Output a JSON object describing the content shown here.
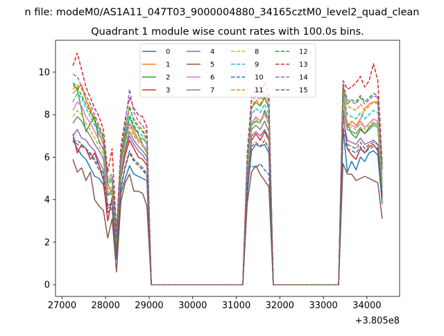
{
  "figure": {
    "suptitle": "n file: modeM0/AS1A11_047T03_9000004880_34165cztM0_level2_quad_clean",
    "title": "Quadrant 1 module wise count rates with 100.0s bins.",
    "x_offset_label": "+3.805e8"
  },
  "chart_data": {
    "type": "line",
    "title": "Quadrant 1 module wise count rates with 100.0s bins.",
    "xlabel": "",
    "ylabel": "",
    "x_offset": 380500000,
    "xlim": [
      26850,
      34750
    ],
    "ylim": [
      -0.55,
      11.5
    ],
    "xticks": [
      27000,
      28000,
      29000,
      30000,
      31000,
      32000,
      33000,
      34000
    ],
    "xtick_labels": [
      "27000",
      "28000",
      "29000",
      "30000",
      "31000",
      "32000",
      "33000",
      "34000"
    ],
    "yticks": [
      0,
      2,
      4,
      6,
      8,
      10
    ],
    "ytick_labels": [
      "0",
      "2",
      "4",
      "6",
      "8",
      "10"
    ],
    "grid": false,
    "legend": {
      "placement": "top-center",
      "columns": 4
    },
    "x": [
      27250,
      27350,
      27450,
      27550,
      27650,
      27750,
      27850,
      27950,
      28050,
      28150,
      28250,
      28350,
      28450,
      28550,
      28650,
      28750,
      28850,
      28950,
      29050,
      31150,
      31250,
      31350,
      31450,
      31550,
      31650,
      31750,
      31850,
      33350,
      33450,
      33550,
      33650,
      33750,
      33850,
      33950,
      34050,
      34150,
      34250,
      34350
    ],
    "series": [
      {
        "name": "0",
        "color": "#1f77b4",
        "dash": false,
        "values": [
          6.8,
          6.4,
          6.1,
          5.9,
          5.5,
          5.1,
          5.0,
          4.7,
          3.4,
          3.6,
          1.2,
          4.3,
          5.0,
          5.6,
          5.2,
          5.1,
          5.0,
          4.9,
          0,
          0,
          4.2,
          6.3,
          6.6,
          6.5,
          6.6,
          6.2,
          0,
          0,
          7.4,
          5.3,
          5.8,
          5.4,
          6.0,
          5.8,
          6.2,
          6.3,
          6.1,
          3.8
        ]
      },
      {
        "name": "1",
        "color": "#ff7f0e",
        "dash": false,
        "values": [
          9.0,
          9.2,
          9.4,
          8.7,
          8.2,
          7.7,
          7.1,
          6.6,
          4.8,
          4.2,
          2.5,
          5.6,
          6.8,
          7.6,
          7.3,
          6.8,
          6.9,
          6.6,
          0,
          0,
          5.5,
          8.3,
          8.6,
          8.4,
          8.8,
          8.3,
          0,
          0,
          9.4,
          7.4,
          7.7,
          7.5,
          7.8,
          8.3,
          8.5,
          8.6,
          8.6,
          5.4
        ]
      },
      {
        "name": "2",
        "color": "#2ca02c",
        "dash": false,
        "values": [
          9.4,
          9.2,
          8.2,
          7.2,
          7.6,
          7.9,
          6.7,
          6.4,
          4.2,
          4.5,
          2.2,
          5.6,
          6.9,
          7.9,
          7.4,
          7.1,
          6.6,
          6.2,
          0,
          0,
          5.1,
          7.5,
          7.7,
          7.6,
          8.2,
          7.8,
          0,
          0,
          8.8,
          7.6,
          7.1,
          6.9,
          7.3,
          7.1,
          7.4,
          7.6,
          7.5,
          4.6
        ]
      },
      {
        "name": "3",
        "color": "#d62728",
        "dash": false,
        "values": [
          7.1,
          6.2,
          6.6,
          6.4,
          5.9,
          6.2,
          5.6,
          4.9,
          3.0,
          4.1,
          1.7,
          5.0,
          6.1,
          6.8,
          6.4,
          6.0,
          5.9,
          5.6,
          0,
          0,
          4.8,
          6.8,
          7.1,
          6.8,
          7.2,
          6.8,
          0,
          0,
          8.1,
          6.4,
          6.1,
          5.9,
          6.4,
          6.2,
          6.5,
          6.6,
          6.3,
          4.2
        ]
      },
      {
        "name": "4",
        "color": "#9467bd",
        "dash": false,
        "values": [
          7.0,
          7.3,
          6.9,
          6.8,
          6.5,
          6.3,
          5.8,
          5.4,
          3.7,
          3.9,
          1.8,
          5.1,
          6.3,
          7.0,
          6.6,
          6.3,
          6.1,
          5.8,
          0,
          0,
          4.9,
          7.0,
          7.2,
          7.0,
          7.3,
          6.9,
          0,
          0,
          7.8,
          6.8,
          6.7,
          6.6,
          6.9,
          6.6,
          6.7,
          6.8,
          6.6,
          4.3
        ]
      },
      {
        "name": "5",
        "color": "#8c564b",
        "dash": false,
        "values": [
          5.9,
          5.3,
          5.5,
          4.9,
          5.3,
          4.0,
          3.7,
          3.5,
          2.2,
          3.1,
          0.6,
          3.9,
          4.8,
          5.2,
          4.4,
          4.4,
          4.3,
          3.7,
          0,
          0,
          3.8,
          5.3,
          5.6,
          5.2,
          4.9,
          4.6,
          0,
          0,
          5.7,
          5.2,
          5.2,
          4.9,
          5.0,
          5.1,
          5.0,
          4.9,
          4.8,
          3.1
        ]
      },
      {
        "name": "6",
        "color": "#e377c2",
        "dash": false,
        "values": [
          8.2,
          8.6,
          8.4,
          7.9,
          7.6,
          7.2,
          6.8,
          6.3,
          4.5,
          4.6,
          2.1,
          5.5,
          6.7,
          7.6,
          7.1,
          6.8,
          6.6,
          6.3,
          0,
          0,
          5.3,
          7.6,
          7.9,
          7.7,
          8.1,
          7.6,
          0,
          0,
          8.7,
          7.6,
          7.5,
          7.4,
          7.7,
          7.4,
          7.6,
          7.8,
          7.7,
          4.8
        ]
      },
      {
        "name": "7",
        "color": "#7f7f7f",
        "dash": false,
        "values": [
          7.6,
          7.9,
          7.7,
          7.3,
          7.0,
          6.6,
          6.3,
          5.9,
          4.2,
          4.3,
          1.9,
          5.2,
          6.4,
          7.2,
          6.8,
          6.5,
          6.3,
          6.0,
          0,
          0,
          5.0,
          7.3,
          7.5,
          7.3,
          7.7,
          7.2,
          0,
          0,
          8.3,
          7.3,
          7.2,
          7.1,
          7.4,
          7.1,
          7.3,
          7.5,
          7.4,
          4.6
        ]
      },
      {
        "name": "8",
        "color": "#bcbd22",
        "dash": true,
        "values": [
          7.9,
          8.2,
          8.0,
          7.6,
          7.3,
          6.9,
          6.5,
          6.1,
          4.4,
          4.5,
          2.0,
          5.4,
          6.6,
          7.4,
          7.0,
          6.7,
          6.5,
          6.2,
          0,
          0,
          5.2,
          7.5,
          7.8,
          7.6,
          8.0,
          7.5,
          0,
          0,
          8.6,
          7.5,
          7.4,
          7.3,
          7.6,
          7.3,
          7.5,
          7.7,
          7.6,
          4.7
        ]
      },
      {
        "name": "9",
        "color": "#17becf",
        "dash": true,
        "values": [
          8.6,
          9.0,
          8.8,
          8.3,
          7.9,
          7.5,
          7.1,
          6.6,
          4.7,
          4.9,
          2.2,
          5.8,
          7.1,
          8.0,
          7.5,
          7.2,
          7.0,
          6.6,
          0,
          0,
          5.6,
          8.0,
          8.3,
          8.1,
          8.5,
          8.0,
          0,
          0,
          9.1,
          8.0,
          7.9,
          7.8,
          8.1,
          7.8,
          8.0,
          8.2,
          8.1,
          5.0
        ]
      },
      {
        "name": "10",
        "color": "#1f77b4",
        "dash": true,
        "values": [
          6.7,
          6.8,
          6.6,
          6.4,
          6.2,
          5.9,
          5.6,
          5.2,
          3.7,
          3.8,
          1.6,
          4.6,
          5.6,
          6.3,
          5.9,
          5.7,
          5.5,
          5.2,
          0,
          0,
          5.4,
          5.6,
          5.5,
          5.7,
          5.4,
          5.2,
          0,
          0,
          7.0,
          6.4,
          6.3,
          6.2,
          6.5,
          6.2,
          6.4,
          6.5,
          6.4,
          4.0
        ]
      },
      {
        "name": "11",
        "color": "#ff7f0e",
        "dash": true,
        "values": [
          9.2,
          9.4,
          9.2,
          8.7,
          8.3,
          7.8,
          7.4,
          6.9,
          4.9,
          5.1,
          2.3,
          6.0,
          7.4,
          8.3,
          7.8,
          7.5,
          7.3,
          6.9,
          0,
          0,
          5.8,
          8.4,
          8.7,
          8.5,
          8.9,
          8.4,
          0,
          0,
          9.4,
          8.4,
          8.3,
          8.2,
          8.5,
          8.2,
          8.4,
          8.6,
          8.5,
          5.3
        ]
      },
      {
        "name": "12",
        "color": "#2ca02c",
        "dash": true,
        "values": [
          9.5,
          9.3,
          8.9,
          8.5,
          8.1,
          7.7,
          7.3,
          6.8,
          4.8,
          5.0,
          2.2,
          5.9,
          7.3,
          8.4,
          7.7,
          7.4,
          7.2,
          6.8,
          0,
          0,
          5.7,
          8.3,
          8.6,
          8.4,
          8.8,
          8.3,
          0,
          0,
          9.3,
          8.5,
          8.7,
          8.6,
          8.9,
          8.6,
          8.8,
          9.0,
          8.9,
          5.5
        ]
      },
      {
        "name": "13",
        "color": "#d62728",
        "dash": true,
        "values": [
          10.3,
          10.9,
          10.1,
          9.3,
          8.8,
          8.3,
          7.9,
          7.3,
          5.3,
          6.4,
          2.5,
          6.5,
          7.8,
          8.8,
          8.3,
          8.0,
          7.9,
          7.4,
          0,
          0,
          6.2,
          8.8,
          9.2,
          9.0,
          9.5,
          8.9,
          0,
          0,
          9.6,
          9.2,
          9.3,
          9.5,
          9.8,
          9.3,
          9.6,
          10.4,
          9.6,
          5.7
        ]
      },
      {
        "name": "14",
        "color": "#9467bd",
        "dash": true,
        "values": [
          9.9,
          9.8,
          9.3,
          8.9,
          8.5,
          8.0,
          7.5,
          7.0,
          5.0,
          5.2,
          2.3,
          6.2,
          7.6,
          9.2,
          8.1,
          7.7,
          7.5,
          7.1,
          0,
          0,
          5.9,
          8.6,
          8.9,
          8.7,
          9.1,
          8.6,
          0,
          0,
          9.5,
          8.7,
          8.6,
          8.5,
          8.8,
          8.5,
          8.7,
          8.9,
          8.8,
          5.4
        ]
      },
      {
        "name": "15",
        "color": "#8c564b",
        "dash": true,
        "values": [
          6.9,
          6.6,
          6.5,
          6.4,
          6.1,
          5.8,
          5.4,
          5.1,
          3.6,
          3.7,
          1.5,
          4.5,
          5.5,
          6.2,
          5.8,
          5.6,
          5.4,
          5.1,
          0,
          0,
          4.5,
          6.5,
          6.7,
          6.5,
          6.8,
          6.4,
          0,
          0,
          7.4,
          6.6,
          6.5,
          6.4,
          6.7,
          6.4,
          6.6,
          6.7,
          6.6,
          4.1
        ]
      }
    ]
  }
}
